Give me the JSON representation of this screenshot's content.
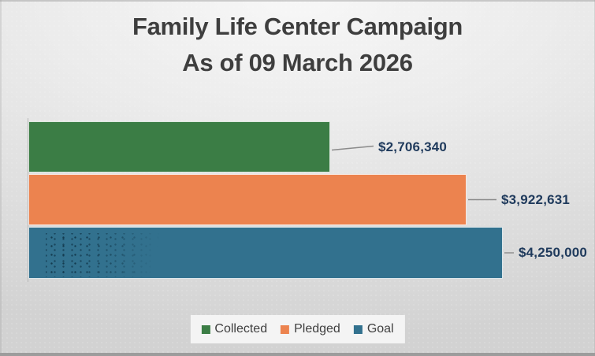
{
  "chart_data": {
    "type": "bar",
    "orientation": "horizontal",
    "title": "Family Life Center Campaign",
    "subtitle": "As of 09 March 2026",
    "categories": [
      "Collected",
      "Pledged",
      "Goal"
    ],
    "values": [
      2706340,
      3922631,
      4250000
    ],
    "value_labels": [
      "$2,706,340",
      "$3,922,631",
      "$4,250,000"
    ],
    "bar_colors": [
      "#3b7d45",
      "#ec834f",
      "#32718e"
    ],
    "xlim": [
      0,
      4250000
    ],
    "grid": false,
    "legend_position": "bottom",
    "legend": [
      {
        "label": "Collected",
        "color": "#3b7d45"
      },
      {
        "label": "Pledged",
        "color": "#ec834f"
      },
      {
        "label": "Goal",
        "color": "#32718e"
      }
    ],
    "title_color": "#3e3e3e",
    "value_label_color": "#1f3a5c",
    "leader_line_color": "#8a8a8a"
  }
}
